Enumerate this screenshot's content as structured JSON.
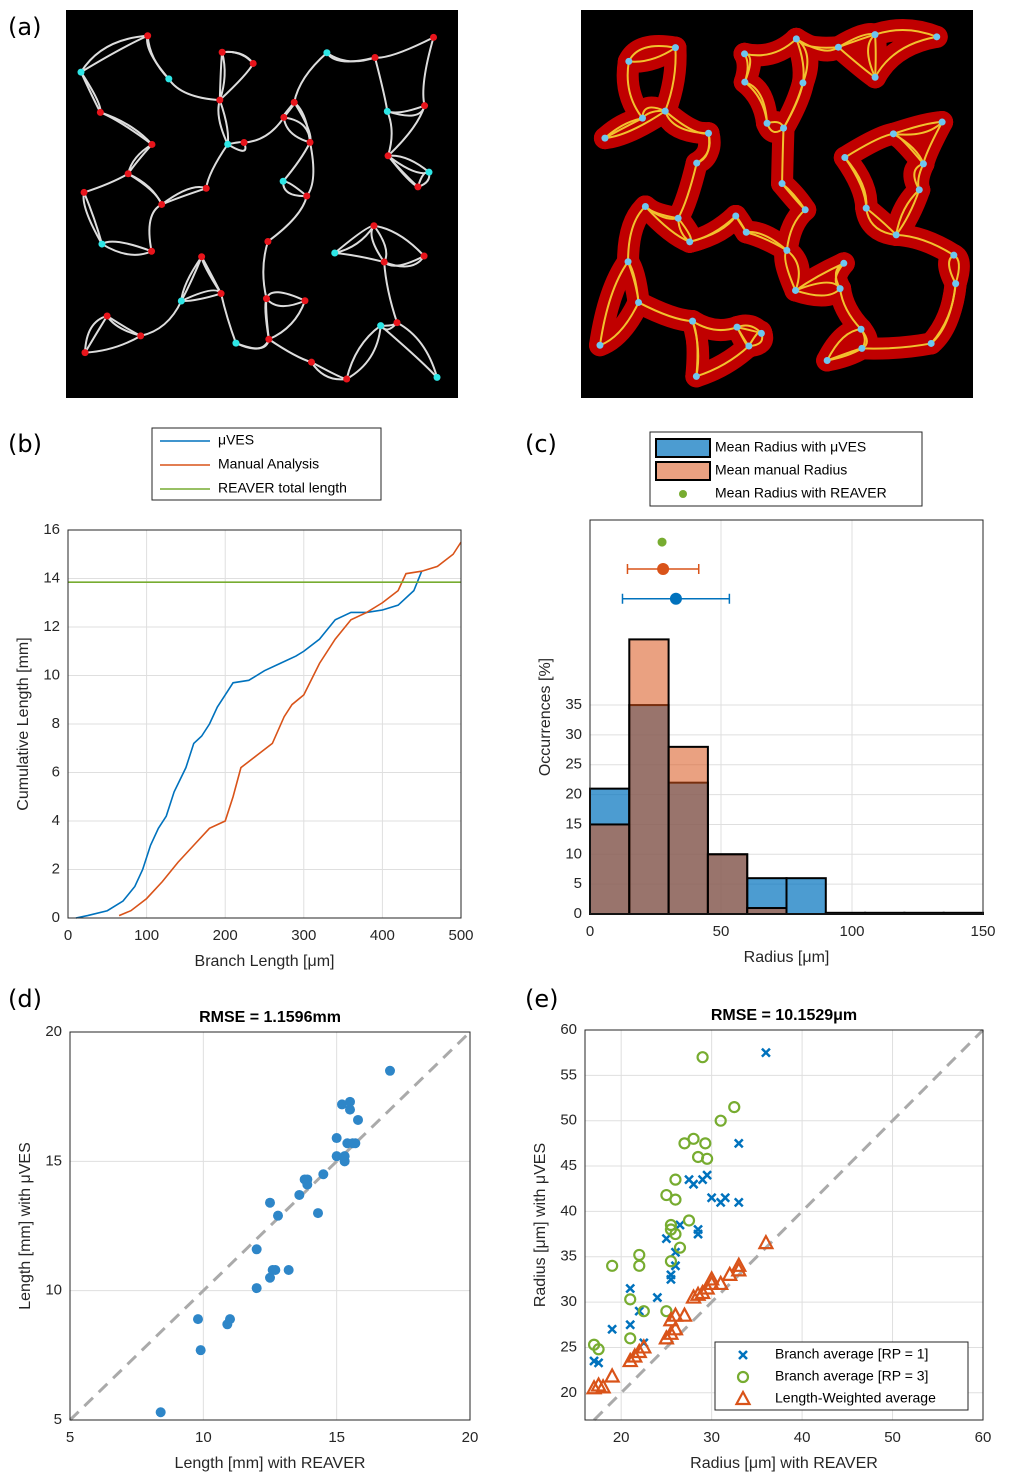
{
  "chart_data": [
    {
      "type": "image",
      "panel_label": "(a)"
    },
    {
      "type": "line",
      "panel_label": "(b)",
      "xlabel": "Branch Length [μm]",
      "ylabel": "Cumulative Length [mm]",
      "xlim": [
        0,
        500
      ],
      "ylim": [
        0,
        16
      ],
      "xticks": [
        0,
        100,
        200,
        300,
        400,
        500
      ],
      "yticks": [
        0,
        2,
        4,
        6,
        8,
        10,
        12,
        14,
        16
      ],
      "grid": true,
      "legend": "above",
      "series": [
        {
          "name": "μVES",
          "color": "#0072BD",
          "x": [
            10,
            25,
            50,
            70,
            85,
            95,
            105,
            115,
            125,
            135,
            150,
            160,
            170,
            180,
            190,
            200,
            210,
            230,
            250,
            270,
            290,
            300,
            320,
            340,
            360,
            380,
            400,
            420,
            440,
            450
          ],
          "values": [
            0,
            0.1,
            0.3,
            0.7,
            1.3,
            2,
            3,
            3.7,
            4.2,
            5.2,
            6.2,
            7.2,
            7.5,
            8,
            8.7,
            9.2,
            9.7,
            9.8,
            10.2,
            10.5,
            10.8,
            11,
            11.5,
            12.3,
            12.6,
            12.6,
            12.7,
            12.9,
            13.5,
            14.3
          ]
        },
        {
          "name": "Manual Analysis",
          "color": "#D95319",
          "x": [
            65,
            80,
            100,
            120,
            140,
            160,
            180,
            200,
            210,
            220,
            240,
            260,
            275,
            285,
            300,
            320,
            340,
            360,
            380,
            400,
            420,
            430,
            450,
            470,
            490,
            500
          ],
          "values": [
            0.1,
            0.3,
            0.8,
            1.5,
            2.3,
            3,
            3.7,
            4,
            5,
            6.2,
            6.7,
            7.2,
            8.3,
            8.8,
            9.2,
            10.5,
            11.5,
            12.3,
            12.6,
            13,
            13.5,
            14.2,
            14.3,
            14.5,
            15,
            15.5
          ]
        },
        {
          "name": "REAVER total length",
          "color": "#77AC30",
          "x": [
            0,
            500
          ],
          "values": [
            13.85,
            13.85
          ]
        }
      ]
    },
    {
      "type": "histogram",
      "panel_label": "(c)",
      "xlabel": "Radius [μm]",
      "ylabel": "Occurrences [%]",
      "xlim": [
        0,
        150
      ],
      "ylim": [
        0,
        66
      ],
      "xticks": [
        0,
        50,
        100,
        150
      ],
      "yticks": [
        0,
        5,
        10,
        15,
        20,
        25,
        30,
        35
      ],
      "grid": true,
      "legend": "above",
      "bins": [
        0,
        15,
        30,
        45,
        60,
        75,
        90,
        105,
        120,
        135,
        150
      ],
      "series": [
        {
          "name": "Mean Radius with μVES",
          "color": "#0072BD",
          "values": [
            21,
            35,
            22,
            10,
            6,
            6,
            0.2,
            0.2,
            0.2,
            0.2
          ],
          "mean": {
            "x": 32.8,
            "y": 52.8,
            "err": 20.4
          }
        },
        {
          "name": "Mean manual Radius",
          "color": "#D95319",
          "values": [
            15,
            46,
            28,
            10,
            1,
            0,
            0,
            0,
            0,
            0
          ],
          "mean": {
            "x": 27.9,
            "y": 57.8,
            "err": 13.6
          }
        },
        {
          "name": "Mean Radius with REAVER",
          "color": "#77AC30",
          "mean": {
            "x": 27.5,
            "y": 62.3
          }
        }
      ]
    },
    {
      "type": "scatter",
      "panel_label": "(d)",
      "title": "RMSE = 1.1596mm",
      "xlabel": "Length [mm] with REAVER",
      "ylabel": "Length [mm] with μVES",
      "xlim": [
        5,
        20
      ],
      "ylim": [
        5,
        20
      ],
      "xticks": [
        5,
        10,
        15,
        20
      ],
      "yticks": [
        5,
        10,
        15,
        20
      ],
      "grid": true,
      "identity_line": true,
      "series": [
        {
          "color": "#2E86C8",
          "marker": "dot",
          "x": [
            8.4,
            9.8,
            9.9,
            10.9,
            11.0,
            12.0,
            12.0,
            12.5,
            12.5,
            12.6,
            12.7,
            12.8,
            13.2,
            13.6,
            13.8,
            13.9,
            13.9,
            14.3,
            14.5,
            15.0,
            15.0,
            15.2,
            15.3,
            15.3,
            15.4,
            15.5,
            15.5,
            15.6,
            15.7,
            15.8,
            17.0
          ],
          "values": [
            5.3,
            8.9,
            7.7,
            8.7,
            8.9,
            10.1,
            11.6,
            13.4,
            10.5,
            10.8,
            10.8,
            12.9,
            10.8,
            13.7,
            14.3,
            14.3,
            14.1,
            13.0,
            14.5,
            15.2,
            15.9,
            17.2,
            15.0,
            15.2,
            15.7,
            17.3,
            17.0,
            15.7,
            15.7,
            16.6,
            18.5
          ]
        }
      ]
    },
    {
      "type": "scatter",
      "panel_label": "(e)",
      "title": "RMSE = 10.1529μm",
      "xlabel": "Radius [μm] with REAVER",
      "ylabel": "Radius [μm] with μVES",
      "xlim": [
        16,
        60
      ],
      "ylim": [
        17,
        60
      ],
      "xticks": [
        20,
        30,
        40,
        50,
        60
      ],
      "yticks": [
        20,
        25,
        30,
        35,
        40,
        45,
        50,
        55,
        60
      ],
      "grid": true,
      "identity_line": true,
      "legend": "lower right",
      "series": [
        {
          "name": "Branch average [RP = 1]",
          "color": "#0072BD",
          "marker": "x",
          "x": [
            17,
            17.5,
            19,
            21,
            21,
            22,
            22.5,
            24,
            25,
            25.5,
            25.5,
            26,
            26,
            26.5,
            27.5,
            28,
            28.5,
            28.5,
            29,
            29.5,
            30,
            31,
            31.5,
            33,
            33,
            36
          ],
          "values": [
            23.5,
            23.3,
            27,
            31.5,
            27.5,
            29,
            25.5,
            30.5,
            37,
            33,
            32.5,
            35.5,
            34,
            38.5,
            43.5,
            43,
            38,
            37.5,
            43.5,
            44,
            41.5,
            41,
            41.5,
            47.5,
            41,
            57.5
          ]
        },
        {
          "name": "Branch average [RP = 3]",
          "color": "#77AC30",
          "marker": "circle",
          "x": [
            17,
            17.5,
            19,
            21,
            21,
            22,
            22,
            22.5,
            25,
            25,
            25.5,
            25.5,
            25.5,
            26,
            26,
            26,
            26.5,
            27,
            27.5,
            28,
            28.5,
            29,
            29.3,
            29.5,
            31,
            32.5
          ],
          "values": [
            25.3,
            24.8,
            34,
            30.3,
            26,
            35.2,
            34,
            29,
            41.8,
            29,
            38.5,
            38,
            34.5,
            43.5,
            41.3,
            37.5,
            36,
            47.5,
            39,
            48,
            46,
            57,
            47.5,
            45.8,
            50,
            51.5
          ]
        },
        {
          "name": "Length-Weighted average",
          "color": "#D95319",
          "marker": "triangle",
          "x": [
            17,
            17.5,
            18,
            19,
            21,
            21.5,
            22,
            22.5,
            25,
            25.5,
            25.5,
            26,
            26,
            27,
            28,
            28.5,
            29,
            29.5,
            30,
            30,
            31,
            32,
            33,
            33,
            36
          ],
          "values": [
            20.5,
            20.8,
            20.6,
            21.8,
            23.5,
            24,
            24.5,
            25,
            26,
            26.5,
            28,
            27,
            28.5,
            28.5,
            30.5,
            30.8,
            31,
            31.5,
            32.5,
            32,
            32,
            33,
            33.5,
            34,
            36.5
          ]
        }
      ]
    }
  ]
}
